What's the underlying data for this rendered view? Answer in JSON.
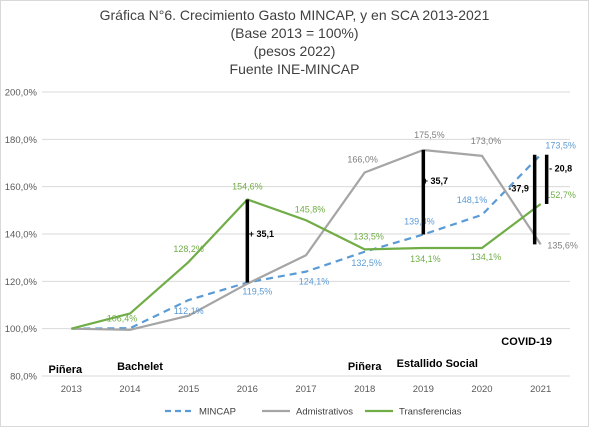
{
  "title_lines": [
    "Gráfica N°6. Crecimiento Gasto MINCAP, y en SCA 2013-2021",
    "(Base 2013 = 100%)",
    "(pesos 2022)",
    "Fuente INE-MINCAP"
  ],
  "chart_data": {
    "type": "line",
    "title": "Gráfica N°6. Crecimiento Gasto MINCAP, y en SCA 2013-2021",
    "subtitle": "(Base 2013 = 100%) (pesos 2022) Fuente INE-MINCAP",
    "categories": [
      "2013",
      "2014",
      "2015",
      "2016",
      "2017",
      "2018",
      "2019",
      "2020",
      "2021"
    ],
    "ylim": [
      80,
      200
    ],
    "ytick_labels": [
      "80,0%",
      "100,0%",
      "120,0%",
      "140,0%",
      "160,0%",
      "180,0%",
      "200,0%"
    ],
    "grid": "horizontal",
    "legend_position": "bottom",
    "series": [
      {
        "name": "MINCAP",
        "color": "#5b9bd5",
        "style": "dashed",
        "values": [
          100.0,
          100.2,
          112.1,
          119.5,
          124.1,
          132.5,
          139.8,
          148.1,
          173.5
        ],
        "labels": [
          null,
          null,
          "112,1%",
          "119,5%",
          "124,1%",
          "132,5%",
          "139,8%",
          "148,1%",
          "173,5%"
        ]
      },
      {
        "name": "Admistrativos",
        "color": "#a5a5a5",
        "style": "solid",
        "values": [
          100.0,
          99.5,
          105.5,
          119.0,
          131.0,
          166.0,
          175.5,
          173.0,
          135.6
        ],
        "labels": [
          null,
          null,
          null,
          null,
          null,
          "166,0%",
          "175,5%",
          "173,0%",
          "135,6%"
        ]
      },
      {
        "name": "Transferencias",
        "color": "#70ad47",
        "style": "solid",
        "values": [
          100.0,
          106.4,
          128.2,
          154.6,
          145.8,
          133.5,
          134.1,
          134.1,
          152.7
        ],
        "labels": [
          null,
          "106,4%",
          "128,2%",
          "154,6%",
          "145,8%",
          "133,5%",
          "134,1%",
          "134,1%",
          "152,7%"
        ]
      }
    ],
    "gap_markers": [
      {
        "x": "2016",
        "from": 119.5,
        "to": 154.6,
        "label": "+ 35,1"
      },
      {
        "x": "2019",
        "from": 139.8,
        "to": 175.5,
        "label": "+ 35,7"
      },
      {
        "x": "2021",
        "from": 135.6,
        "to": 173.5,
        "label": "-37,9"
      },
      {
        "x": "2021",
        "from": 152.7,
        "to": 173.5,
        "label": "- 20,8"
      }
    ],
    "annotations": [
      {
        "text": "Piñera",
        "x": "2013"
      },
      {
        "text": "Bachelet",
        "x": "2014"
      },
      {
        "text": "Piñera",
        "x": "2018"
      },
      {
        "text": "Estallido Social",
        "x": "2019"
      },
      {
        "text": "COVID-19",
        "x": "2021"
      }
    ]
  }
}
